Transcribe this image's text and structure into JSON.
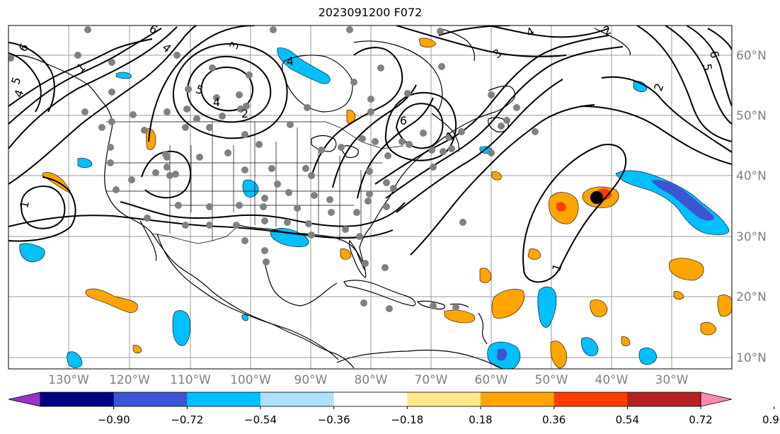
{
  "title": "2023091200 F072",
  "map": {
    "lon_labels": [
      "130°W",
      "120°W",
      "110°W",
      "100°W",
      "90°W",
      "80°W",
      "70°W",
      "60°W",
      "50°W",
      "40°W",
      "30°W"
    ],
    "lat_labels": [
      "60°N",
      "50°N",
      "40°N",
      "30°N",
      "20°N",
      "10°N"
    ],
    "contour_labels": [
      "6",
      "5",
      "4",
      "1",
      "4",
      "6",
      "5",
      "4",
      "3",
      "2",
      "4",
      "6",
      "1",
      "1",
      "2",
      "6",
      "5",
      "4",
      "3",
      "2",
      "1"
    ],
    "label_color": "#808080"
  },
  "colorbar": {
    "ticks": [
      "−0.90",
      "−0.72",
      "−0.54",
      "−0.36",
      "−0.18",
      "0.18",
      "0.36",
      "0.54",
      "0.72",
      "0.90"
    ],
    "colors": [
      "#9932cc",
      "#000080",
      "#3c55d2",
      "#00bfff",
      "#aee0fb",
      "#ffffff",
      "#ffe98c",
      "#ffa500",
      "#ff3c00",
      "#b22222",
      "#ff88b0"
    ]
  },
  "legend_colors": {
    "coast": "#000000",
    "observation_dot": "#808080",
    "marker": "#000000"
  }
}
